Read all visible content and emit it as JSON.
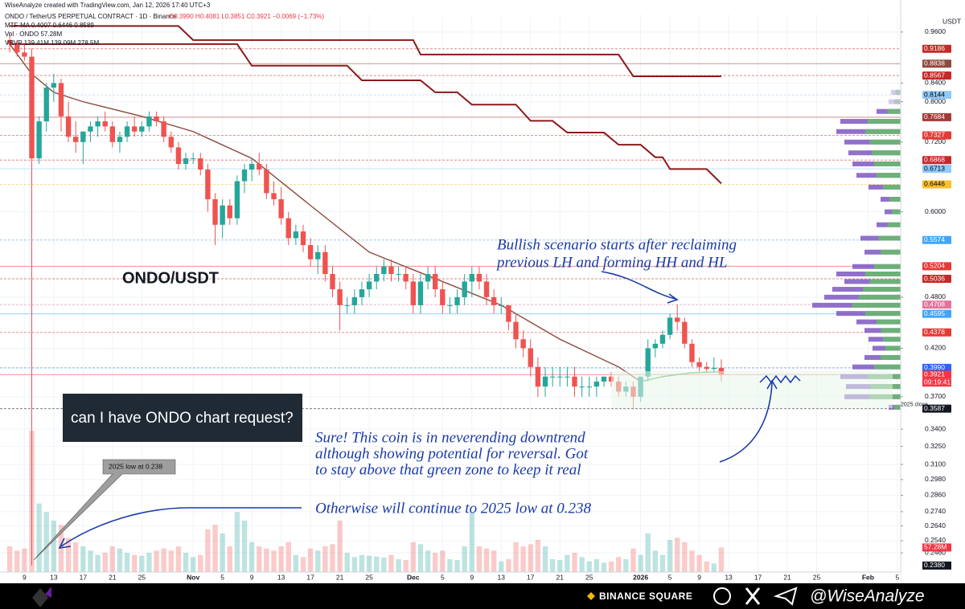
{
  "header": {
    "credit": "WiseAnalyze created with TradingView.com, Jan 12, 2026 17:40 UTC+3",
    "symbol": "ONDO / TetherUS PERPETUAL CONTRACT · 1D · Binance",
    "ohlc": "O0.3990 H0.4081 L0.3851 C0.3921 −0.0069 (−1.73%)",
    "ma_legend": "MTF-MA  0.4007  0.6446  0.8589",
    "vol_legend": "Vol · ONDO  57.28M",
    "vrvp_legend": "VRVP  139.41M  139.09M  278.5M"
  },
  "footer": {
    "square": "BINANCE SQUARE",
    "handle": "@WiseAnalyze"
  },
  "annotations": {
    "pair": "ONDO/USDT",
    "bullish": [
      "Bullish scenario starts after reclaiming",
      "previous  LH and forming HH and HL"
    ],
    "request": "can I have ONDO chart request?",
    "reply": [
      "Sure! This coin is in neverending downtrend",
      "although showing potential for reversal. Got",
      "to stay above that green zone to keep it real"
    ],
    "otherwise": "Otherwise will continue to 2025 low at 0.238",
    "low_callout": "2025 low at 0.238",
    "close_tag": "2025 close",
    "countdown": "09:19:41",
    "currency": "USDT"
  },
  "chart_data": {
    "type": "candlestick",
    "log_scale": true,
    "grid": true,
    "up_color": "#26a69a",
    "down_color": "#ef5350",
    "xlim": [
      "2025-10-06",
      "2026-02-06"
    ],
    "xticks": [
      {
        "value": "2025-10-09",
        "label": "9"
      },
      {
        "value": "2025-10-13",
        "label": "13"
      },
      {
        "value": "2025-10-17",
        "label": "17"
      },
      {
        "value": "2025-10-21",
        "label": "21"
      },
      {
        "value": "2025-10-25",
        "label": "25"
      },
      {
        "value": "2025-11-01",
        "label": "Nov"
      },
      {
        "value": "2025-11-05",
        "label": "5"
      },
      {
        "value": "2025-11-09",
        "label": "9"
      },
      {
        "value": "2025-11-13",
        "label": "13"
      },
      {
        "value": "2025-11-17",
        "label": "17"
      },
      {
        "value": "2025-11-21",
        "label": "21"
      },
      {
        "value": "2025-11-25",
        "label": "25"
      },
      {
        "value": "2025-12-01",
        "label": "Dec"
      },
      {
        "value": "2025-12-05",
        "label": "5"
      },
      {
        "value": "2025-12-09",
        "label": "9"
      },
      {
        "value": "2025-12-13",
        "label": "13"
      },
      {
        "value": "2025-12-17",
        "label": "17"
      },
      {
        "value": "2025-12-21",
        "label": "21"
      },
      {
        "value": "2025-12-25",
        "label": "25"
      },
      {
        "value": "2026-01-01",
        "label": "2026"
      },
      {
        "value": "2026-01-05",
        "label": "5"
      },
      {
        "value": "2026-01-09",
        "label": "9"
      },
      {
        "value": "2026-01-13",
        "label": "13"
      },
      {
        "value": "2026-01-17",
        "label": "17"
      },
      {
        "value": "2026-01-21",
        "label": "21"
      },
      {
        "value": "2026-01-25",
        "label": "25"
      },
      {
        "value": "2026-02-01",
        "label": "Feb"
      },
      {
        "value": "2026-02-05",
        "label": "5"
      }
    ],
    "ylim": [
      0.234,
      1.005
    ],
    "yticks": [
      {
        "value": 0.96,
        "label": "0.9600"
      },
      {
        "value": 0.84,
        "label": "0.8400"
      },
      {
        "value": 0.8,
        "label": "0.8000"
      },
      {
        "value": 0.72,
        "label": "0.7200"
      },
      {
        "value": 0.6,
        "label": "0.6000"
      },
      {
        "value": 0.48,
        "label": "0.4800"
      },
      {
        "value": 0.42,
        "label": "0.4200"
      },
      {
        "value": 0.37,
        "label": "0.3700"
      },
      {
        "value": 0.34,
        "label": "0.3400"
      },
      {
        "value": 0.325,
        "label": "0.3250"
      },
      {
        "value": 0.31,
        "label": "0.3100"
      },
      {
        "value": 0.298,
        "label": "0.2980"
      },
      {
        "value": 0.286,
        "label": "0.2860"
      },
      {
        "value": 0.274,
        "label": "0.2740"
      },
      {
        "value": 0.264,
        "label": "0.2640"
      },
      {
        "value": 0.254,
        "label": "0.2540"
      },
      {
        "value": 0.246,
        "label": "0.2460"
      }
    ],
    "price_levels": [
      {
        "value": 0.9186,
        "label": "0.9186",
        "color": "#c62828"
      },
      {
        "value": 0.8838,
        "label": "0.8838",
        "color": "#8d4a3c"
      },
      {
        "value": 0.8567,
        "label": "0.8567",
        "color": "#c62828"
      },
      {
        "value": 0.8144,
        "label": "0.8144",
        "color": "#90caf9"
      },
      {
        "value": 0.7684,
        "label": "0.7684",
        "color": "#a33a3a"
      },
      {
        "value": 0.7327,
        "label": "0.7327",
        "color": "#e53935"
      },
      {
        "value": 0.6868,
        "label": "0.6868",
        "color": "#c62828"
      },
      {
        "value": 0.6713,
        "label": "0.6713",
        "color": "#90caf9"
      },
      {
        "value": 0.6446,
        "label": "0.6446",
        "color": "#fbc02d"
      },
      {
        "value": 0.5574,
        "label": "0.5574",
        "color": "#42a5f5"
      },
      {
        "value": 0.5204,
        "label": "0.5204",
        "color": "#e53935"
      },
      {
        "value": 0.5036,
        "label": "0.5036",
        "color": "#c62828"
      },
      {
        "value": 0.4708,
        "label": "0.4708",
        "color": "#e57399"
      },
      {
        "value": 0.4595,
        "label": "0.4595",
        "color": "#42a5f5"
      },
      {
        "value": 0.4378,
        "label": "0.4378",
        "color": "#e53935"
      },
      {
        "value": 0.399,
        "label": "0.3990",
        "color": "#2962ff"
      },
      {
        "value": 0.3921,
        "label": "0.3921",
        "color": "#f23645"
      },
      {
        "value": 0.3587,
        "label": "0.3587",
        "color": "#131722"
      }
    ],
    "x": [
      "2025-10-07",
      "2025-10-08",
      "2025-10-09",
      "2025-10-10",
      "2025-10-11",
      "2025-10-12",
      "2025-10-13",
      "2025-10-14",
      "2025-10-15",
      "2025-10-16",
      "2025-10-17",
      "2025-10-18",
      "2025-10-19",
      "2025-10-20",
      "2025-10-21",
      "2025-10-22",
      "2025-10-23",
      "2025-10-24",
      "2025-10-25",
      "2025-10-26",
      "2025-10-27",
      "2025-10-28",
      "2025-10-29",
      "2025-10-30",
      "2025-10-31",
      "2025-11-01",
      "2025-11-02",
      "2025-11-03",
      "2025-11-04",
      "2025-11-05",
      "2025-11-06",
      "2025-11-07",
      "2025-11-08",
      "2025-11-09",
      "2025-11-10",
      "2025-11-11",
      "2025-11-12",
      "2025-11-13",
      "2025-11-14",
      "2025-11-15",
      "2025-11-16",
      "2025-11-17",
      "2025-11-18",
      "2025-11-19",
      "2025-11-20",
      "2025-11-21",
      "2025-11-22",
      "2025-11-23",
      "2025-11-24",
      "2025-11-25",
      "2025-11-26",
      "2025-11-27",
      "2025-11-28",
      "2025-11-29",
      "2025-11-30",
      "2025-12-01",
      "2025-12-02",
      "2025-12-03",
      "2025-12-04",
      "2025-12-05",
      "2025-12-06",
      "2025-12-07",
      "2025-12-08",
      "2025-12-09",
      "2025-12-10",
      "2025-12-11",
      "2025-12-12",
      "2025-12-13",
      "2025-12-14",
      "2025-12-15",
      "2025-12-16",
      "2025-12-17",
      "2025-12-18",
      "2025-12-19",
      "2025-12-20",
      "2025-12-21",
      "2025-12-22",
      "2025-12-23",
      "2025-12-24",
      "2025-12-25",
      "2025-12-26",
      "2025-12-27",
      "2025-12-28",
      "2025-12-29",
      "2025-12-30",
      "2025-12-31",
      "2026-01-01",
      "2026-01-02",
      "2026-01-03",
      "2026-01-04",
      "2026-01-05",
      "2026-01-06",
      "2026-01-07",
      "2026-01-08",
      "2026-01-09",
      "2026-01-10",
      "2026-01-11",
      "2026-01-12"
    ],
    "candles": [
      [
        0.94,
        0.96,
        0.91,
        0.93
      ],
      [
        0.93,
        0.94,
        0.9,
        0.91
      ],
      [
        0.91,
        0.93,
        0.89,
        0.9
      ],
      [
        0.9,
        0.92,
        0.238,
        0.69
      ],
      [
        0.69,
        0.77,
        0.68,
        0.76
      ],
      [
        0.76,
        0.84,
        0.74,
        0.83
      ],
      [
        0.83,
        0.86,
        0.8,
        0.84
      ],
      [
        0.84,
        0.85,
        0.74,
        0.77
      ],
      [
        0.77,
        0.8,
        0.72,
        0.73
      ],
      [
        0.73,
        0.76,
        0.7,
        0.72
      ],
      [
        0.72,
        0.74,
        0.68,
        0.74
      ],
      [
        0.74,
        0.76,
        0.72,
        0.75
      ],
      [
        0.75,
        0.77,
        0.73,
        0.76
      ],
      [
        0.76,
        0.78,
        0.74,
        0.75
      ],
      [
        0.75,
        0.76,
        0.71,
        0.72
      ],
      [
        0.72,
        0.74,
        0.7,
        0.73
      ],
      [
        0.73,
        0.76,
        0.72,
        0.75
      ],
      [
        0.75,
        0.77,
        0.73,
        0.74
      ],
      [
        0.74,
        0.76,
        0.73,
        0.75
      ],
      [
        0.75,
        0.78,
        0.74,
        0.77
      ],
      [
        0.77,
        0.78,
        0.75,
        0.76
      ],
      [
        0.76,
        0.77,
        0.72,
        0.73
      ],
      [
        0.73,
        0.74,
        0.7,
        0.71
      ],
      [
        0.71,
        0.72,
        0.67,
        0.68
      ],
      [
        0.68,
        0.7,
        0.67,
        0.69
      ],
      [
        0.69,
        0.7,
        0.68,
        0.69
      ],
      [
        0.69,
        0.7,
        0.66,
        0.67
      ],
      [
        0.67,
        0.68,
        0.6,
        0.62
      ],
      [
        0.62,
        0.63,
        0.55,
        0.58
      ],
      [
        0.58,
        0.62,
        0.56,
        0.61
      ],
      [
        0.61,
        0.62,
        0.58,
        0.59
      ],
      [
        0.59,
        0.66,
        0.58,
        0.65
      ],
      [
        0.65,
        0.68,
        0.63,
        0.67
      ],
      [
        0.67,
        0.69,
        0.65,
        0.68
      ],
      [
        0.68,
        0.7,
        0.66,
        0.67
      ],
      [
        0.67,
        0.68,
        0.62,
        0.63
      ],
      [
        0.63,
        0.65,
        0.61,
        0.62
      ],
      [
        0.62,
        0.64,
        0.58,
        0.59
      ],
      [
        0.59,
        0.6,
        0.55,
        0.56
      ],
      [
        0.56,
        0.58,
        0.55,
        0.57
      ],
      [
        0.57,
        0.58,
        0.54,
        0.55
      ],
      [
        0.55,
        0.56,
        0.52,
        0.53
      ],
      [
        0.53,
        0.55,
        0.51,
        0.54
      ],
      [
        0.54,
        0.55,
        0.5,
        0.51
      ],
      [
        0.51,
        0.52,
        0.48,
        0.49
      ],
      [
        0.49,
        0.5,
        0.44,
        0.47
      ],
      [
        0.47,
        0.48,
        0.46,
        0.47
      ],
      [
        0.47,
        0.49,
        0.46,
        0.48
      ],
      [
        0.48,
        0.5,
        0.47,
        0.49
      ],
      [
        0.49,
        0.51,
        0.48,
        0.5
      ],
      [
        0.5,
        0.52,
        0.49,
        0.51
      ],
      [
        0.51,
        0.53,
        0.5,
        0.52
      ],
      [
        0.52,
        0.53,
        0.5,
        0.51
      ],
      [
        0.51,
        0.52,
        0.5,
        0.51
      ],
      [
        0.51,
        0.52,
        0.49,
        0.5
      ],
      [
        0.5,
        0.51,
        0.46,
        0.47
      ],
      [
        0.47,
        0.51,
        0.46,
        0.5
      ],
      [
        0.5,
        0.52,
        0.49,
        0.51
      ],
      [
        0.51,
        0.52,
        0.48,
        0.49
      ],
      [
        0.49,
        0.5,
        0.46,
        0.47
      ],
      [
        0.47,
        0.48,
        0.46,
        0.47
      ],
      [
        0.47,
        0.49,
        0.46,
        0.48
      ],
      [
        0.48,
        0.51,
        0.47,
        0.5
      ],
      [
        0.5,
        0.52,
        0.48,
        0.51
      ],
      [
        0.51,
        0.52,
        0.49,
        0.5
      ],
      [
        0.5,
        0.51,
        0.47,
        0.48
      ],
      [
        0.48,
        0.49,
        0.46,
        0.47
      ],
      [
        0.47,
        0.48,
        0.46,
        0.47
      ],
      [
        0.47,
        0.47,
        0.44,
        0.45
      ],
      [
        0.45,
        0.46,
        0.42,
        0.43
      ],
      [
        0.43,
        0.44,
        0.41,
        0.42
      ],
      [
        0.42,
        0.43,
        0.39,
        0.4
      ],
      [
        0.4,
        0.41,
        0.37,
        0.38
      ],
      [
        0.38,
        0.4,
        0.37,
        0.39
      ],
      [
        0.39,
        0.4,
        0.38,
        0.39
      ],
      [
        0.39,
        0.4,
        0.38,
        0.39
      ],
      [
        0.39,
        0.4,
        0.38,
        0.39
      ],
      [
        0.39,
        0.4,
        0.37,
        0.38
      ],
      [
        0.38,
        0.39,
        0.37,
        0.38
      ],
      [
        0.38,
        0.39,
        0.37,
        0.38
      ],
      [
        0.38,
        0.39,
        0.37,
        0.385
      ],
      [
        0.385,
        0.39,
        0.38,
        0.39
      ],
      [
        0.39,
        0.395,
        0.38,
        0.385
      ],
      [
        0.385,
        0.39,
        0.37,
        0.375
      ],
      [
        0.375,
        0.385,
        0.37,
        0.38
      ],
      [
        0.38,
        0.385,
        0.3587,
        0.37
      ],
      [
        0.37,
        0.39,
        0.365,
        0.39
      ],
      [
        0.39,
        0.43,
        0.385,
        0.42
      ],
      [
        0.42,
        0.43,
        0.41,
        0.425
      ],
      [
        0.425,
        0.44,
        0.42,
        0.435
      ],
      [
        0.435,
        0.46,
        0.43,
        0.455
      ],
      [
        0.455,
        0.4708,
        0.44,
        0.45
      ],
      [
        0.45,
        0.455,
        0.42,
        0.425
      ],
      [
        0.425,
        0.43,
        0.4,
        0.405
      ],
      [
        0.405,
        0.41,
        0.395,
        0.4
      ],
      [
        0.4,
        0.405,
        0.395,
        0.398
      ],
      [
        0.398,
        0.41,
        0.395,
        0.399
      ],
      [
        0.399,
        0.4081,
        0.3851,
        0.3921
      ]
    ],
    "volume_lim": [
      0,
      450
    ],
    "volume": [
      60,
      50,
      55,
      330,
      160,
      140,
      120,
      110,
      80,
      70,
      60,
      50,
      40,
      45,
      60,
      55,
      45,
      40,
      38,
      45,
      50,
      55,
      50,
      60,
      45,
      35,
      40,
      100,
      110,
      90,
      60,
      140,
      120,
      70,
      60,
      55,
      50,
      60,
      70,
      40,
      35,
      55,
      50,
      60,
      65,
      120,
      45,
      35,
      40,
      38,
      36,
      34,
      40,
      30,
      28,
      70,
      65,
      50,
      45,
      50,
      30,
      28,
      60,
      140,
      60,
      55,
      50,
      25,
      30,
      70,
      60,
      65,
      75,
      60,
      30,
      28,
      40,
      45,
      35,
      25,
      30,
      22,
      25,
      35,
      30,
      55,
      40,
      90,
      50,
      40,
      75,
      80,
      70,
      50,
      40,
      25,
      20,
      57.28
    ],
    "volume_labels": [
      {
        "value": 57.28,
        "label": "57.28M",
        "color": "#f23645"
      }
    ],
    "low_label": {
      "value": 0.238,
      "label": "0.2380"
    },
    "ma_lines": [
      {
        "color": "#8d4a3c",
        "x": [
          "2025-10-07",
          "2025-10-10",
          "2025-10-13",
          "2025-10-17",
          "2025-10-25",
          "2025-11-01",
          "2025-11-09",
          "2025-11-17",
          "2025-11-25",
          "2025-12-05",
          "2025-12-13",
          "2025-12-21",
          "2025-12-29",
          "2026-01-01"
        ],
        "values": [
          0.93,
          0.86,
          0.82,
          0.8,
          0.77,
          0.74,
          0.69,
          0.61,
          0.54,
          0.5,
          0.47,
          0.43,
          0.4,
          0.385
        ]
      },
      {
        "color": "#4caf50",
        "x": [
          "2026-01-01",
          "2026-01-04",
          "2026-01-08",
          "2026-01-12"
        ],
        "values": [
          0.385,
          0.39,
          0.394,
          0.395
        ]
      }
    ],
    "mtf_steps": [
      {
        "color": "#8b1a1a",
        "x": [
          "2025-10-07",
          "2025-10-30",
          "2025-11-01",
          "2025-12-01",
          "2025-12-02",
          "2025-12-29",
          "2025-12-31",
          "2026-01-12"
        ],
        "values": [
          0.975,
          0.975,
          0.94,
          0.94,
          0.905,
          0.905,
          0.855,
          0.855
        ]
      },
      {
        "color": "#8b1a1a",
        "x": [
          "2025-10-07",
          "2025-11-07",
          "2025-11-09",
          "2025-11-22",
          "2025-11-24",
          "2025-12-02",
          "2025-12-04",
          "2025-12-07",
          "2025-12-09",
          "2025-12-15",
          "2025-12-17",
          "2025-12-20",
          "2025-12-22",
          "2025-12-27",
          "2025-12-29",
          "2026-01-01",
          "2026-01-03",
          "2026-01-04",
          "2026-01-05",
          "2026-01-10",
          "2026-01-12"
        ],
        "values": [
          0.93,
          0.93,
          0.879,
          0.879,
          0.846,
          0.846,
          0.82,
          0.82,
          0.794,
          0.794,
          0.761,
          0.761,
          0.738,
          0.738,
          0.715,
          0.715,
          0.692,
          0.692,
          0.671,
          0.671,
          0.646
        ]
      }
    ],
    "volume_profile": {
      "prices": [
        0.36,
        0.37,
        0.38,
        0.39,
        0.4,
        0.41,
        0.42,
        0.43,
        0.44,
        0.45,
        0.46,
        0.47,
        0.48,
        0.49,
        0.5,
        0.51,
        0.52,
        0.54,
        0.56,
        0.58,
        0.6,
        0.62,
        0.64,
        0.66,
        0.68,
        0.7,
        0.72,
        0.74,
        0.76,
        0.78,
        0.8,
        0.82
      ],
      "values": [
        15,
        70,
        68,
        75,
        60,
        45,
        35,
        40,
        45,
        55,
        80,
        110,
        95,
        85,
        70,
        80,
        60,
        45,
        50,
        30,
        20,
        25,
        40,
        55,
        60,
        65,
        70,
        80,
        75,
        30,
        15,
        12
      ],
      "colors": [
        "#7e57c2",
        "#66bb6a"
      ]
    }
  }
}
